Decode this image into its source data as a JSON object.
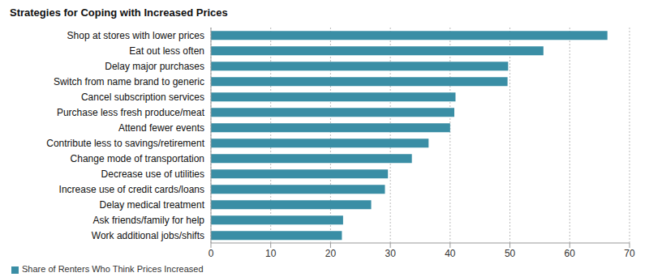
{
  "chart_data": {
    "type": "bar",
    "title": "Strategies for Coping with Increased Prices",
    "orientation": "horizontal",
    "categories": [
      "Shop at stores with lower prices",
      "Eat out less often",
      "Delay major purchases",
      "Switch from name brand to generic",
      "Cancel subscription services",
      "Purchase less fresh produce/meat",
      "Attend fewer events",
      "Contribute less to savings/retirement",
      "Change mode of transportation",
      "Decrease use of utilities",
      "Increase use of credit cards/loans",
      "Delay medical treatment",
      "Ask friends/family for help",
      "Work additional jobs/shifts"
    ],
    "series": [
      {
        "name": "Share of Renters Who Think Prices Increased",
        "color": "#3a8ea5",
        "values": [
          66.3,
          55.6,
          49.7,
          49.6,
          40.9,
          40.7,
          40.0,
          36.4,
          33.6,
          29.6,
          29.1,
          26.8,
          22.1,
          21.9
        ]
      }
    ],
    "xlim": [
      0,
      70
    ],
    "xticks": [
      0,
      10,
      20,
      30,
      40,
      50,
      60,
      70
    ],
    "grid": true,
    "legend": "bottom-left"
  }
}
